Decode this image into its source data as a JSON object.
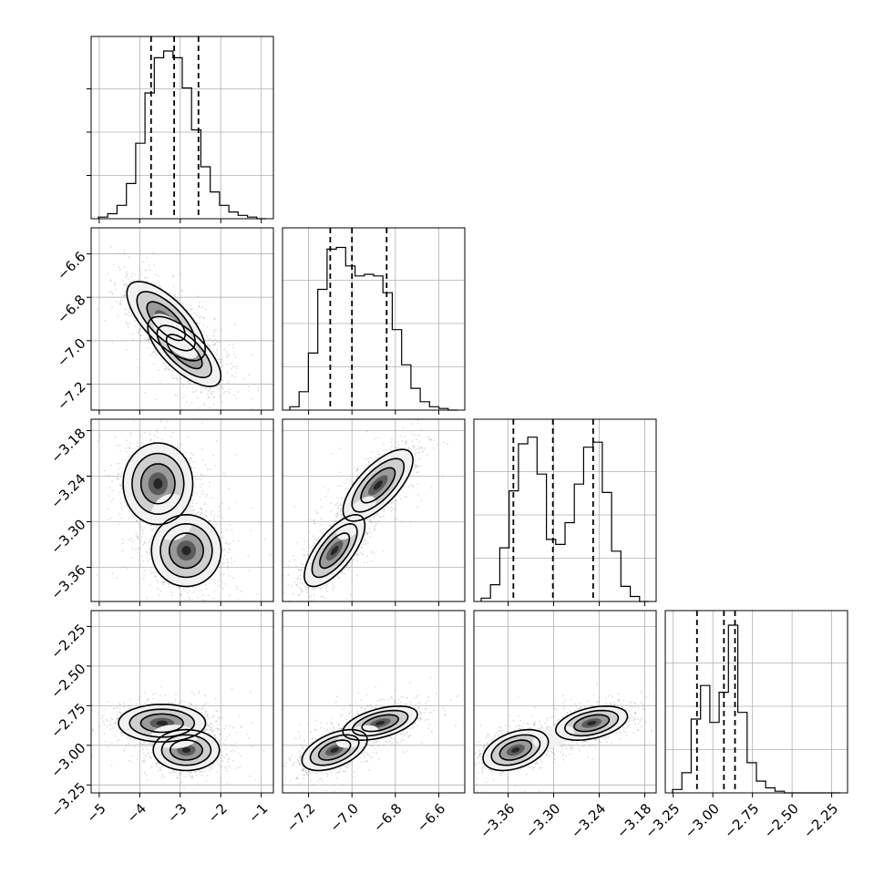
{
  "chart_data": {
    "type": "corner",
    "grid": true,
    "params": [
      {
        "range": [
          -5.2,
          -0.7
        ],
        "ticks": [
          -5,
          -4,
          -3,
          -2,
          -1
        ],
        "ticklabels": [
          "−5",
          "−4",
          "−3",
          "−2",
          "−1"
        ],
        "quantiles": [
          -3.72,
          -3.15,
          -2.55
        ],
        "hist": [
          1,
          3,
          8,
          21,
          45,
          75,
          96,
          100,
          96,
          78,
          53,
          31,
          16,
          8,
          4,
          2,
          1,
          0
        ]
      },
      {
        "range": [
          -7.32,
          -6.48
        ],
        "ticks": [
          -7.2,
          -7.0,
          -6.8,
          -6.6
        ],
        "ticklabels": [
          "−7.2",
          "−7.0",
          "−6.8",
          "−6.6"
        ],
        "quantiles": [
          -7.1,
          -7.0,
          -6.84
        ],
        "hist": [
          2,
          11,
          34,
          72,
          96,
          97,
          86,
          80,
          81,
          80,
          70,
          48,
          27,
          13,
          5,
          2,
          1,
          0
        ]
      },
      {
        "range": [
          -3.405,
          -3.165
        ],
        "ticks": [
          -3.36,
          -3.3,
          -3.24,
          -3.18
        ],
        "ticklabels": [
          "−3.36",
          "−3.30",
          "−3.24",
          "−3.18"
        ],
        "quantiles": [
          -3.353,
          -3.301,
          -3.248
        ],
        "hist": [
          2,
          10,
          32,
          66,
          94,
          98,
          76,
          37,
          34,
          47,
          70,
          92,
          95,
          65,
          30,
          9,
          3,
          0
        ]
      },
      {
        "range": [
          -3.3,
          -2.15
        ],
        "ticks": [
          -3.25,
          -3.0,
          -2.75,
          -2.5,
          -2.25
        ],
        "ticklabels": [
          "−3.25",
          "−3.00",
          "−2.75",
          "−2.50",
          "−2.25"
        ],
        "quantiles": [
          -3.1,
          -2.93,
          -2.86
        ],
        "hist": [
          2,
          12,
          44,
          64,
          42,
          60,
          100,
          48,
          18,
          7,
          3,
          1,
          0,
          0,
          0,
          0,
          0,
          0
        ]
      }
    ],
    "pairs": [
      {
        "row": 1,
        "col": 0,
        "blobs": [
          {
            "cx": -3.35,
            "cy": -6.91,
            "sx": 0.45,
            "sy": 0.085,
            "rho": -0.7
          },
          {
            "cx": -2.9,
            "cy": -7.05,
            "sx": 0.42,
            "sy": 0.075,
            "rho": -0.7
          }
        ]
      },
      {
        "row": 2,
        "col": 0,
        "blobs": [
          {
            "cx": -3.55,
            "cy": -3.25,
            "sx": 0.4,
            "sy": 0.025,
            "rho": 0.0
          },
          {
            "cx": -2.85,
            "cy": -3.338,
            "sx": 0.4,
            "sy": 0.022,
            "rho": 0.0
          }
        ]
      },
      {
        "row": 2,
        "col": 1,
        "blobs": [
          {
            "cx": -7.08,
            "cy": -3.338,
            "sx": 0.065,
            "sy": 0.022,
            "rho": 0.7
          },
          {
            "cx": -6.88,
            "cy": -3.252,
            "sx": 0.075,
            "sy": 0.022,
            "rho": 0.7
          }
        ]
      },
      {
        "row": 3,
        "col": 0,
        "blobs": [
          {
            "cx": -3.45,
            "cy": -2.86,
            "sx": 0.5,
            "sy": 0.055,
            "rho": 0.0
          },
          {
            "cx": -2.85,
            "cy": -3.03,
            "sx": 0.38,
            "sy": 0.06,
            "rho": 0.0
          }
        ]
      },
      {
        "row": 3,
        "col": 1,
        "blobs": [
          {
            "cx": -7.08,
            "cy": -3.03,
            "sx": 0.07,
            "sy": 0.06,
            "rho": 0.5
          },
          {
            "cx": -6.87,
            "cy": -2.86,
            "sx": 0.08,
            "sy": 0.05,
            "rho": 0.5
          }
        ]
      },
      {
        "row": 3,
        "col": 2,
        "blobs": [
          {
            "cx": -3.35,
            "cy": -3.03,
            "sx": 0.02,
            "sy": 0.06,
            "rho": 0.4
          },
          {
            "cx": -3.25,
            "cy": -2.86,
            "sx": 0.022,
            "sy": 0.05,
            "rho": 0.4
          }
        ]
      }
    ]
  }
}
